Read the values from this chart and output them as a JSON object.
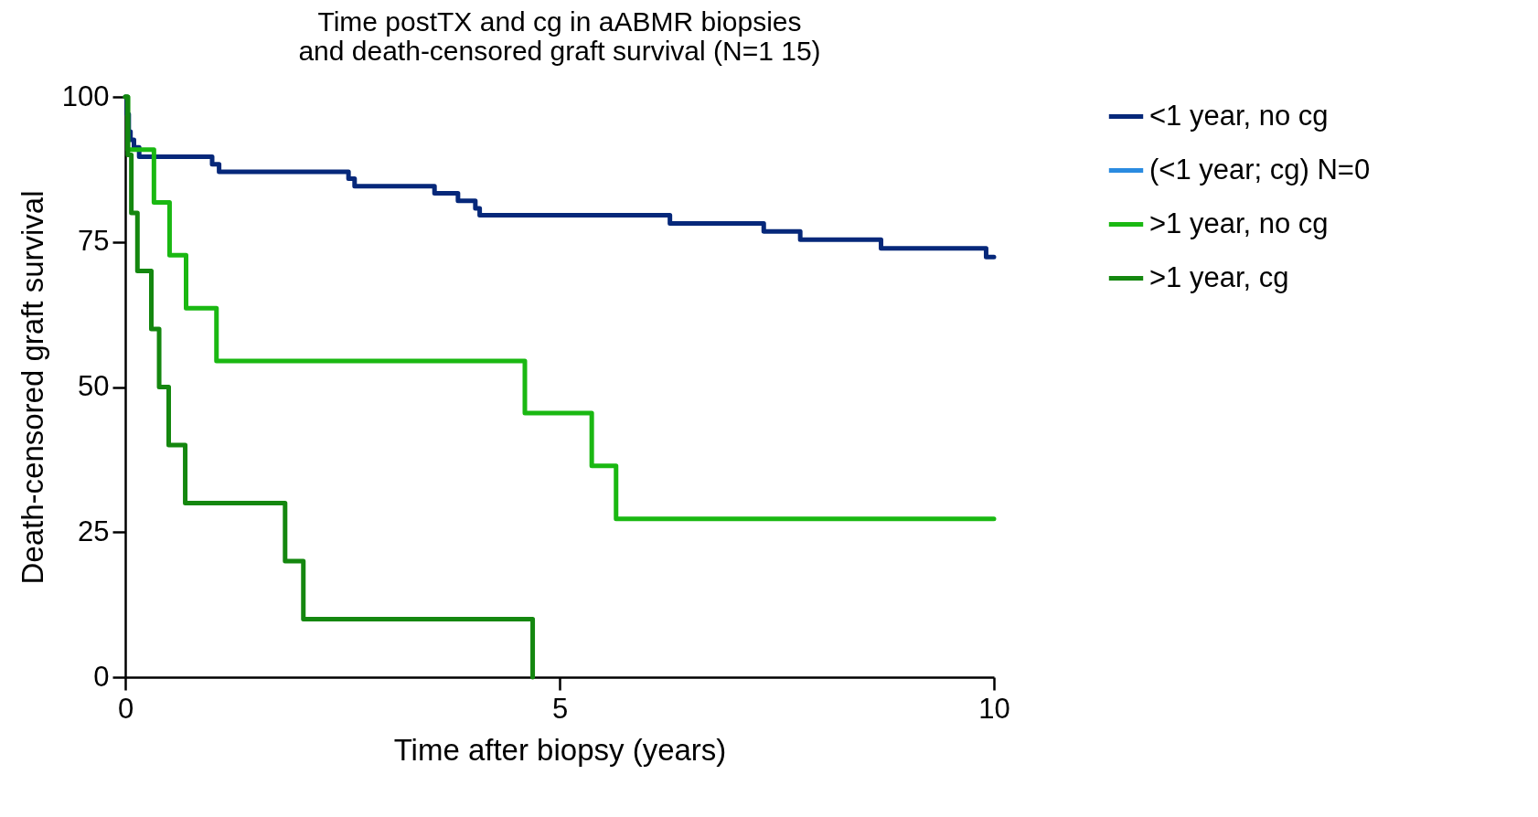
{
  "chart_data": {
    "type": "step",
    "title": [
      "Time postTX and cg in aABMR biopsies",
      "and death-censored graft survival (N=1 15)"
    ],
    "xlabel": "Time after biopsy (years)",
    "ylabel": "Death-censored graft survival",
    "xlim": [
      0,
      10
    ],
    "xticks": [
      0,
      5,
      10
    ],
    "ylim": [
      0,
      100
    ],
    "yticks": [
      0,
      25,
      50,
      75,
      100
    ],
    "grid": false,
    "legend": "right",
    "line_style": "solid",
    "marker": "none",
    "series": [
      {
        "name": "<1 year, no cg",
        "color": "#06287a",
        "x": [
          0,
          0.02,
          0.04,
          0.06,
          0.1,
          0.16,
          1.0,
          1.08,
          2.57,
          2.64,
          3.56,
          3.83,
          4.03,
          4.08,
          6.27,
          7.35,
          7.77,
          8.7,
          9.91,
          10
        ],
        "values": [
          100,
          97,
          94,
          92.6,
          91.3,
          89.7,
          88.4,
          87.1,
          85.9,
          84.6,
          83.4,
          82.1,
          80.8,
          79.6,
          78.2,
          76.8,
          75.4,
          73.9,
          72.4,
          72.4
        ]
      },
      {
        "name": "(<1 year; cg) N=0",
        "color": "#2a8be0"
      },
      {
        "name": ">1 year, no cg",
        "color": "#1ab812",
        "x": [
          0,
          0.03,
          0.33,
          0.51,
          0.7,
          1.05,
          4.6,
          5.37,
          5.65,
          10
        ],
        "values": [
          100,
          90.9,
          81.8,
          72.7,
          63.6,
          54.5,
          45.5,
          36.4,
          27.3,
          27.3
        ]
      },
      {
        "name": ">1 year, cg",
        "color": "#14870f",
        "x": [
          0,
          0.03,
          0.07,
          0.14,
          0.3,
          0.39,
          0.5,
          0.69,
          1.84,
          2.05,
          4.69
        ],
        "values": [
          100,
          90,
          80,
          70,
          60,
          50,
          40,
          30,
          20,
          10,
          0
        ]
      }
    ]
  }
}
